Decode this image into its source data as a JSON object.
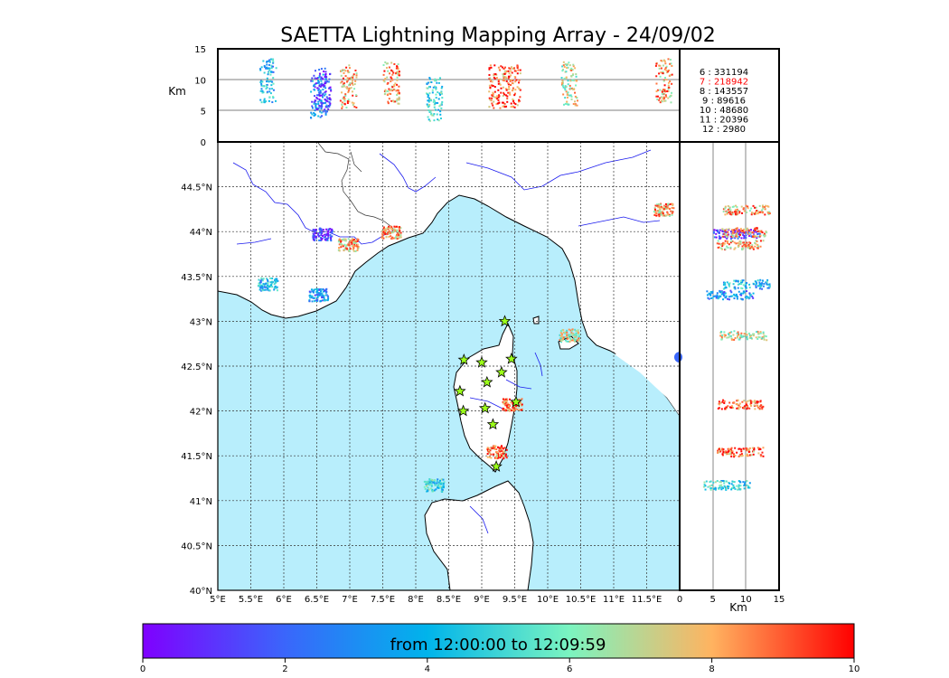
{
  "title": "SAETTA Lightning Mapping Array - 24/09/02",
  "colorbar": {
    "label": "from 12:00:00 to 12:09:59",
    "ticks": [
      "0",
      "2",
      "4",
      "6",
      "8",
      "10"
    ],
    "range": [
      0,
      10
    ],
    "colors": [
      "#7f00ff",
      "#3a66fb",
      "#00b4eb",
      "#7bf4c0",
      "#ffb360",
      "#ff0000"
    ]
  },
  "altitude_axis": {
    "label": "Km",
    "ticks": [
      "0",
      "5",
      "10",
      "15"
    ],
    "range": [
      0,
      15
    ]
  },
  "longitude_ticks": [
    "5°E",
    "5.5°E",
    "6°E",
    "6.5°E",
    "7°E",
    "7.5°E",
    "8°E",
    "8.5°E",
    "9°E",
    "9.5°E",
    "10°E",
    "10.5°E",
    "11°E",
    "11.5°E"
  ],
  "latitude_ticks": [
    "40°N",
    "40.5°N",
    "41°N",
    "41.5°N",
    "42°N",
    "42.5°N",
    "43°N",
    "43.5°N",
    "44°N",
    "44.5°N"
  ],
  "map_extent": {
    "lon": [
      5,
      12
    ],
    "lat": [
      40,
      45
    ]
  },
  "sea_color": "#b8eefc",
  "counts": [
    {
      "text": "6  :   331194",
      "color": "#000000"
    },
    {
      "text": "7  :   218942",
      "color": "#ff0000"
    },
    {
      "text": "8  :   143557",
      "color": "#000000"
    },
    {
      "text": "9  :     89616",
      "color": "#000000"
    },
    {
      "text": "10  :     48680",
      "color": "#000000"
    },
    {
      "text": "11  :     20396",
      "color": "#000000"
    },
    {
      "text": "12  :       2980",
      "color": "#000000"
    }
  ],
  "stations": [
    {
      "lon": 9.35,
      "lat": 43.0
    },
    {
      "lon": 8.73,
      "lat": 42.57
    },
    {
      "lon": 9.0,
      "lat": 42.54
    },
    {
      "lon": 9.45,
      "lat": 42.58
    },
    {
      "lon": 9.3,
      "lat": 42.43
    },
    {
      "lon": 9.08,
      "lat": 42.32
    },
    {
      "lon": 8.67,
      "lat": 42.22
    },
    {
      "lon": 9.05,
      "lat": 42.03
    },
    {
      "lon": 8.72,
      "lat": 42.0
    },
    {
      "lon": 9.52,
      "lat": 42.1
    },
    {
      "lon": 9.17,
      "lat": 41.85
    },
    {
      "lon": 9.22,
      "lat": 41.38
    }
  ],
  "clusters": [
    {
      "lon": 5.75,
      "lat": 43.42,
      "alt": 10.0,
      "t": 4
    },
    {
      "lon": 6.52,
      "lat": 43.3,
      "alt": 7.5,
      "t": 3
    },
    {
      "lon": 6.58,
      "lat": 43.98,
      "alt": 8.5,
      "t": 1
    },
    {
      "lon": 6.97,
      "lat": 43.86,
      "alt": 9.0,
      "t": 8
    },
    {
      "lon": 7.62,
      "lat": 44.0,
      "alt": 9.5,
      "t": 8
    },
    {
      "lon": 8.27,
      "lat": 41.18,
      "alt": 7.0,
      "t": 5
    },
    {
      "lon": 9.45,
      "lat": 42.08,
      "alt": 9.0,
      "t": 9
    },
    {
      "lon": 9.22,
      "lat": 41.55,
      "alt": 9.0,
      "t": 9
    },
    {
      "lon": 10.32,
      "lat": 42.85,
      "alt": 9.5,
      "t": 7
    },
    {
      "lon": 11.75,
      "lat": 44.25,
      "alt": 10.0,
      "t": 8
    },
    {
      "lon": 12.0,
      "lat": 42.6,
      "alt": 0.0,
      "t": 2
    }
  ]
}
